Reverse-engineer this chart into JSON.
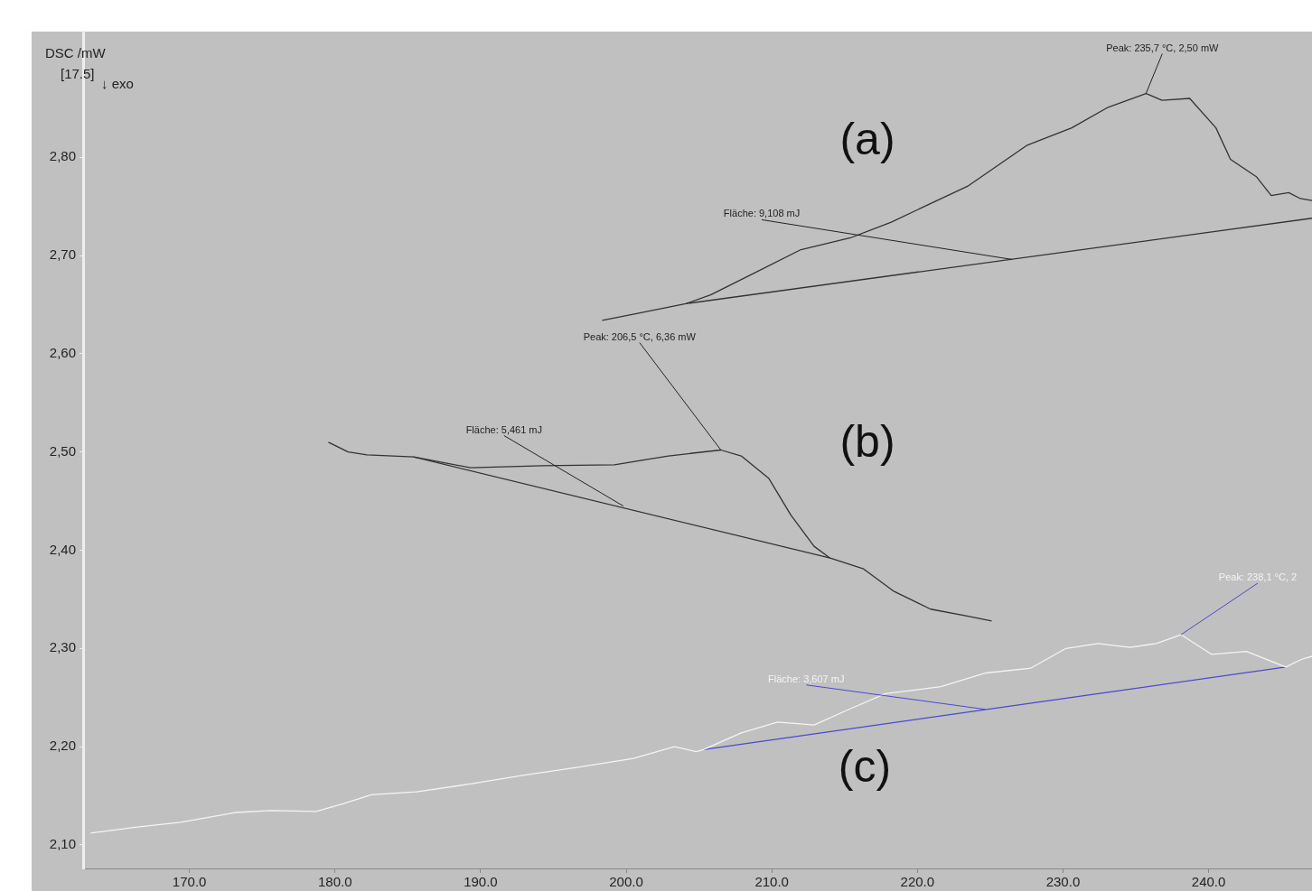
{
  "chart_data": {
    "type": "line",
    "ylabel": "DSC /mW",
    "xlim": [
      162.7,
      247.1
    ],
    "ylim": [
      2.076,
      2.928
    ],
    "xticks": [
      {
        "value": 170,
        "label": "170.0"
      },
      {
        "value": 180,
        "label": "180.0"
      },
      {
        "value": 190,
        "label": "190.0"
      },
      {
        "value": 200,
        "label": "200.0"
      },
      {
        "value": 210,
        "label": "210.0"
      },
      {
        "value": 220,
        "label": "220.0"
      },
      {
        "value": 230,
        "label": "230.0"
      },
      {
        "value": 240,
        "label": "240.0"
      }
    ],
    "yticks": [
      {
        "value": 2.1,
        "label": "2,10"
      },
      {
        "value": 2.2,
        "label": "2,20"
      },
      {
        "value": 2.3,
        "label": "2,30"
      },
      {
        "value": 2.4,
        "label": "2,40"
      },
      {
        "value": 2.5,
        "label": "2,50"
      },
      {
        "value": 2.6,
        "label": "2,60"
      },
      {
        "value": 2.7,
        "label": "2,70"
      },
      {
        "value": 2.8,
        "label": "2,80"
      }
    ],
    "grid": false,
    "legend": false,
    "marker": "none",
    "line_style": "solid",
    "series": [
      {
        "color": "#333333",
        "x": [
          198.35,
          200.4,
          204.1,
          205.8,
          208.9,
          212.0,
          215.4,
          218.2,
          223.5,
          227.5,
          230.6,
          233.1,
          235.7,
          236.8,
          238.7,
          240.5,
          241.5,
          242.4,
          243.3,
          244.3,
          245.5,
          246.3,
          247.1
        ],
        "values": [
          2.634,
          2.64,
          2.651,
          2.66,
          2.683,
          2.706,
          2.718,
          2.734,
          2.771,
          2.812,
          2.83,
          2.851,
          2.865,
          2.858,
          2.86,
          2.83,
          2.798,
          2.789,
          2.78,
          2.761,
          2.764,
          2.758,
          2.756
        ]
      },
      {
        "color": "#333333",
        "x": [
          204.1,
          247.1
        ],
        "values": [
          2.651,
          2.738
        ]
      },
      {
        "color": "#333333",
        "x": [
          179.55,
          180.9,
          182.2,
          185.4,
          189.3,
          194.3,
          199.2,
          202.9,
          206.5,
          207.9,
          209.8,
          211.3,
          212.9,
          214.0,
          216.3,
          218.4,
          220.9,
          223.4,
          225.1
        ],
        "values": [
          2.51,
          2.5,
          2.497,
          2.495,
          2.484,
          2.486,
          2.487,
          2.496,
          2.502,
          2.496,
          2.473,
          2.436,
          2.404,
          2.392,
          2.381,
          2.358,
          2.34,
          2.333,
          2.328
        ]
      },
      {
        "color": "#333333",
        "x": [
          185.4,
          214.0
        ],
        "values": [
          2.495,
          2.392
        ]
      },
      {
        "color": "#f4f4f4",
        "x": [
          163.2,
          166.3,
          169.4,
          173.2,
          175.6,
          178.7,
          180.6,
          182.5,
          185.6,
          189.3,
          193.0,
          196.7,
          200.5,
          203.3,
          204.8,
          205.3,
          207.9,
          210.4,
          212.9,
          215.3,
          217.8,
          221.6,
          224.7,
          227.8,
          230.2,
          232.4,
          234.6,
          236.4,
          238.1,
          240.2,
          242.6,
          245.3,
          246.4,
          247.1
        ],
        "values": [
          2.112,
          2.118,
          2.123,
          2.133,
          2.135,
          2.134,
          2.142,
          2.151,
          2.154,
          2.162,
          2.171,
          2.179,
          2.188,
          2.2,
          2.195,
          2.197,
          2.214,
          2.225,
          2.222,
          2.238,
          2.254,
          2.261,
          2.275,
          2.28,
          2.3,
          2.305,
          2.301,
          2.305,
          2.314,
          2.294,
          2.297,
          2.281,
          2.289,
          2.292
        ]
      },
      {
        "color": "#4a4ad0",
        "x": [
          205.3,
          245.3
        ],
        "values": [
          2.197,
          2.281
        ]
      }
    ],
    "annotations": [
      "[17.5]",
      "↓ exo",
      "(a)",
      "(b)",
      "(c)",
      {
        "text": "Peak: 235,7 °C, 2,50 mW",
        "x": 235.7,
        "y": 2.865
      },
      {
        "text": "Fläche: 9,108 mJ",
        "x": 226.5,
        "y": 2.696
      },
      {
        "text": "Peak: 206,5 °C, 6,36 mW",
        "x": 206.5,
        "y": 2.502
      },
      {
        "text": "Fläche: 5,461 mJ",
        "x": 199.8,
        "y": 2.445
      },
      {
        "text": "Peak: 238,1 °C, 2",
        "x": 238.1,
        "y": 2.314
      },
      {
        "text": "Fläche: 3,607 mJ",
        "x": 224.65,
        "y": 2.238
      }
    ]
  }
}
